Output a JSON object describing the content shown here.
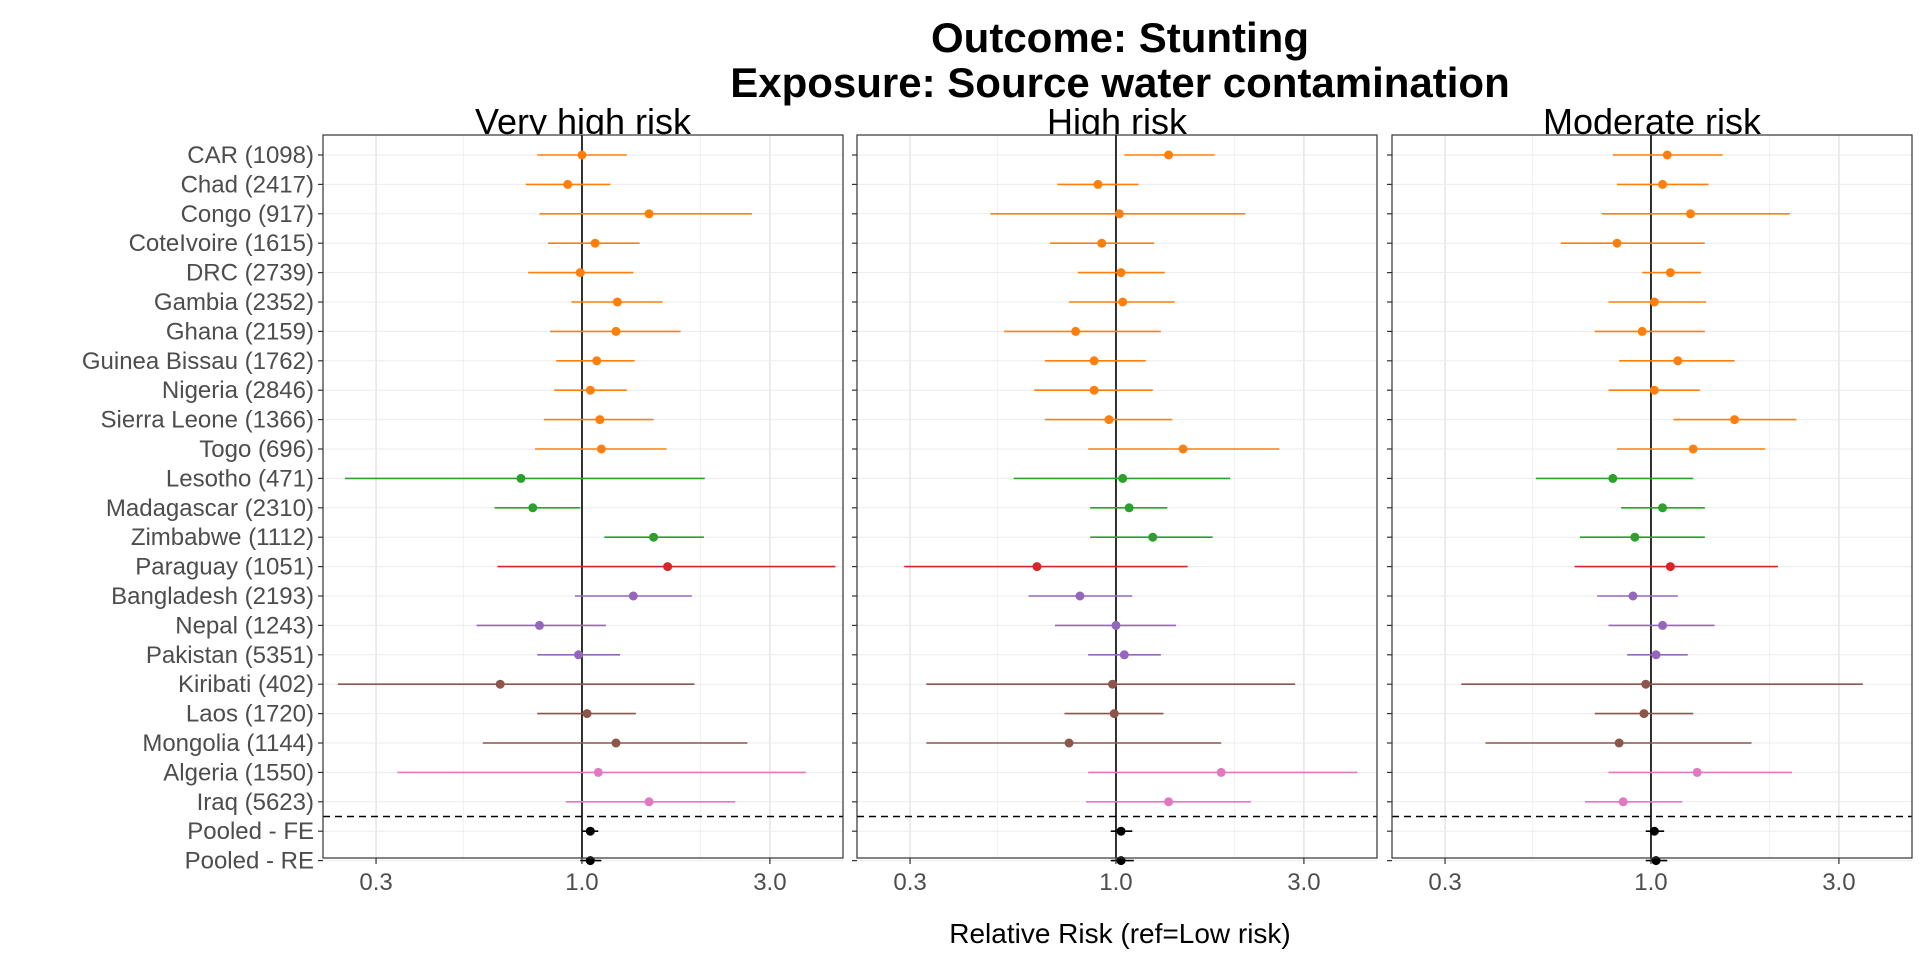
{
  "chart_data": {
    "type": "forest",
    "title_line1": "Outcome: Stunting",
    "title_line2": "Exposure: Source water contamination",
    "xlabel": "Relative Risk (ref=Low risk)",
    "x_scale": "log",
    "xlim": [
      0.22,
      4.6
    ],
    "x_ticks": [
      0.3,
      1.0,
      3.0
    ],
    "x_tick_labels": [
      "0.3",
      "1.0",
      "3.0"
    ],
    "reference_line": 1.0,
    "grid": true,
    "colors": {
      "orange": "#ff7f0e",
      "green": "#2ca02c",
      "red": "#d62728",
      "purple": "#9467bd",
      "brown": "#8c564b",
      "pink": "#e377c2",
      "black": "#000000"
    },
    "rows": [
      {
        "label": "CAR (1098)",
        "color": "orange"
      },
      {
        "label": "Chad (2417)",
        "color": "orange"
      },
      {
        "label": "Congo (917)",
        "color": "orange"
      },
      {
        "label": "CoteIvoire (1615)",
        "color": "orange"
      },
      {
        "label": "DRC (2739)",
        "color": "orange"
      },
      {
        "label": "Gambia (2352)",
        "color": "orange"
      },
      {
        "label": "Ghana (2159)",
        "color": "orange"
      },
      {
        "label": "Guinea Bissau (1762)",
        "color": "orange"
      },
      {
        "label": "Nigeria (2846)",
        "color": "orange"
      },
      {
        "label": "Sierra Leone (1366)",
        "color": "orange"
      },
      {
        "label": "Togo (696)",
        "color": "orange"
      },
      {
        "label": "Lesotho (471)",
        "color": "green"
      },
      {
        "label": "Madagascar (2310)",
        "color": "green"
      },
      {
        "label": "Zimbabwe (1112)",
        "color": "green"
      },
      {
        "label": "Paraguay (1051)",
        "color": "red"
      },
      {
        "label": "Bangladesh (2193)",
        "color": "purple"
      },
      {
        "label": "Nepal (1243)",
        "color": "purple"
      },
      {
        "label": "Pakistan (5351)",
        "color": "purple"
      },
      {
        "label": "Kiribati (402)",
        "color": "brown"
      },
      {
        "label": "Laos (1720)",
        "color": "brown"
      },
      {
        "label": "Mongolia (1144)",
        "color": "brown"
      },
      {
        "label": "Algeria (1550)",
        "color": "pink"
      },
      {
        "label": "Iraq (5623)",
        "color": "pink"
      },
      {
        "label": "Pooled - FE",
        "color": "black"
      },
      {
        "label": "Pooled - RE",
        "color": "black"
      }
    ],
    "panels": [
      {
        "name": "Very high risk",
        "estimates": [
          {
            "est": 1.0,
            "lo": 0.77,
            "hi": 1.3
          },
          {
            "est": 0.92,
            "lo": 0.72,
            "hi": 1.18
          },
          {
            "est": 1.48,
            "lo": 0.78,
            "hi": 2.7
          },
          {
            "est": 1.08,
            "lo": 0.82,
            "hi": 1.4
          },
          {
            "est": 0.99,
            "lo": 0.73,
            "hi": 1.35
          },
          {
            "est": 1.23,
            "lo": 0.94,
            "hi": 1.6
          },
          {
            "est": 1.22,
            "lo": 0.83,
            "hi": 1.78
          },
          {
            "est": 1.09,
            "lo": 0.86,
            "hi": 1.36
          },
          {
            "est": 1.05,
            "lo": 0.85,
            "hi": 1.3
          },
          {
            "est": 1.11,
            "lo": 0.8,
            "hi": 1.52
          },
          {
            "est": 1.12,
            "lo": 0.76,
            "hi": 1.64
          },
          {
            "est": 0.7,
            "lo": 0.25,
            "hi": 2.05
          },
          {
            "est": 0.75,
            "lo": 0.6,
            "hi": 0.99
          },
          {
            "est": 1.52,
            "lo": 1.14,
            "hi": 2.04
          },
          {
            "est": 1.65,
            "lo": 0.61,
            "hi": 4.4
          },
          {
            "est": 1.35,
            "lo": 0.96,
            "hi": 1.9
          },
          {
            "est": 0.78,
            "lo": 0.54,
            "hi": 1.15
          },
          {
            "est": 0.98,
            "lo": 0.77,
            "hi": 1.25
          },
          {
            "est": 0.62,
            "lo": 0.24,
            "hi": 1.93
          },
          {
            "est": 1.03,
            "lo": 0.77,
            "hi": 1.37
          },
          {
            "est": 1.22,
            "lo": 0.56,
            "hi": 2.63
          },
          {
            "est": 1.1,
            "lo": 0.34,
            "hi": 3.7
          },
          {
            "est": 1.48,
            "lo": 0.91,
            "hi": 2.45
          },
          {
            "est": 1.05,
            "lo": 1.0,
            "hi": 1.1
          },
          {
            "est": 1.05,
            "lo": 0.99,
            "hi": 1.12
          }
        ]
      },
      {
        "name": "High risk",
        "estimates": [
          {
            "est": 1.36,
            "lo": 1.05,
            "hi": 1.78
          },
          {
            "est": 0.9,
            "lo": 0.71,
            "hi": 1.14
          },
          {
            "est": 1.02,
            "lo": 0.48,
            "hi": 2.13
          },
          {
            "est": 0.92,
            "lo": 0.68,
            "hi": 1.25
          },
          {
            "est": 1.03,
            "lo": 0.8,
            "hi": 1.33
          },
          {
            "est": 1.04,
            "lo": 0.76,
            "hi": 1.41
          },
          {
            "est": 0.79,
            "lo": 0.52,
            "hi": 1.3
          },
          {
            "est": 0.88,
            "lo": 0.66,
            "hi": 1.19
          },
          {
            "est": 0.88,
            "lo": 0.62,
            "hi": 1.24
          },
          {
            "est": 0.96,
            "lo": 0.66,
            "hi": 1.39
          },
          {
            "est": 1.48,
            "lo": 0.85,
            "hi": 2.6
          },
          {
            "est": 1.04,
            "lo": 0.55,
            "hi": 1.95
          },
          {
            "est": 1.08,
            "lo": 0.86,
            "hi": 1.35
          },
          {
            "est": 1.24,
            "lo": 0.86,
            "hi": 1.76
          },
          {
            "est": 0.63,
            "lo": 0.29,
            "hi": 1.52
          },
          {
            "est": 0.81,
            "lo": 0.6,
            "hi": 1.1
          },
          {
            "est": 1.0,
            "lo": 0.7,
            "hi": 1.42
          },
          {
            "est": 1.05,
            "lo": 0.85,
            "hi": 1.3
          },
          {
            "est": 0.98,
            "lo": 0.33,
            "hi": 2.85
          },
          {
            "est": 0.99,
            "lo": 0.74,
            "hi": 1.32
          },
          {
            "est": 0.76,
            "lo": 0.33,
            "hi": 1.85
          },
          {
            "est": 1.85,
            "lo": 0.85,
            "hi": 4.1
          },
          {
            "est": 1.36,
            "lo": 0.84,
            "hi": 2.2
          },
          {
            "est": 1.03,
            "lo": 0.97,
            "hi": 1.1
          },
          {
            "est": 1.03,
            "lo": 0.97,
            "hi": 1.11
          }
        ]
      },
      {
        "name": "Moderate risk",
        "estimates": [
          {
            "est": 1.1,
            "lo": 0.8,
            "hi": 1.52
          },
          {
            "est": 1.07,
            "lo": 0.82,
            "hi": 1.4
          },
          {
            "est": 1.26,
            "lo": 0.75,
            "hi": 2.25
          },
          {
            "est": 0.82,
            "lo": 0.59,
            "hi": 1.37
          },
          {
            "est": 1.12,
            "lo": 0.95,
            "hi": 1.34
          },
          {
            "est": 1.02,
            "lo": 0.78,
            "hi": 1.38
          },
          {
            "est": 0.95,
            "lo": 0.72,
            "hi": 1.37
          },
          {
            "est": 1.17,
            "lo": 0.83,
            "hi": 1.63
          },
          {
            "est": 1.02,
            "lo": 0.78,
            "hi": 1.33
          },
          {
            "est": 1.63,
            "lo": 1.14,
            "hi": 2.34
          },
          {
            "est": 1.28,
            "lo": 0.82,
            "hi": 1.95
          },
          {
            "est": 0.8,
            "lo": 0.51,
            "hi": 1.28
          },
          {
            "est": 1.07,
            "lo": 0.84,
            "hi": 1.37
          },
          {
            "est": 0.91,
            "lo": 0.66,
            "hi": 1.37
          },
          {
            "est": 1.12,
            "lo": 0.64,
            "hi": 2.1
          },
          {
            "est": 0.9,
            "lo": 0.73,
            "hi": 1.17
          },
          {
            "est": 1.07,
            "lo": 0.78,
            "hi": 1.45
          },
          {
            "est": 1.03,
            "lo": 0.87,
            "hi": 1.24
          },
          {
            "est": 0.97,
            "lo": 0.33,
            "hi": 3.45
          },
          {
            "est": 0.96,
            "lo": 0.72,
            "hi": 1.28
          },
          {
            "est": 0.83,
            "lo": 0.38,
            "hi": 1.8
          },
          {
            "est": 1.31,
            "lo": 0.78,
            "hi": 2.28
          },
          {
            "est": 0.85,
            "lo": 0.68,
            "hi": 1.2
          },
          {
            "est": 1.02,
            "lo": 0.97,
            "hi": 1.08
          },
          {
            "est": 1.03,
            "lo": 0.97,
            "hi": 1.1
          }
        ]
      }
    ]
  }
}
